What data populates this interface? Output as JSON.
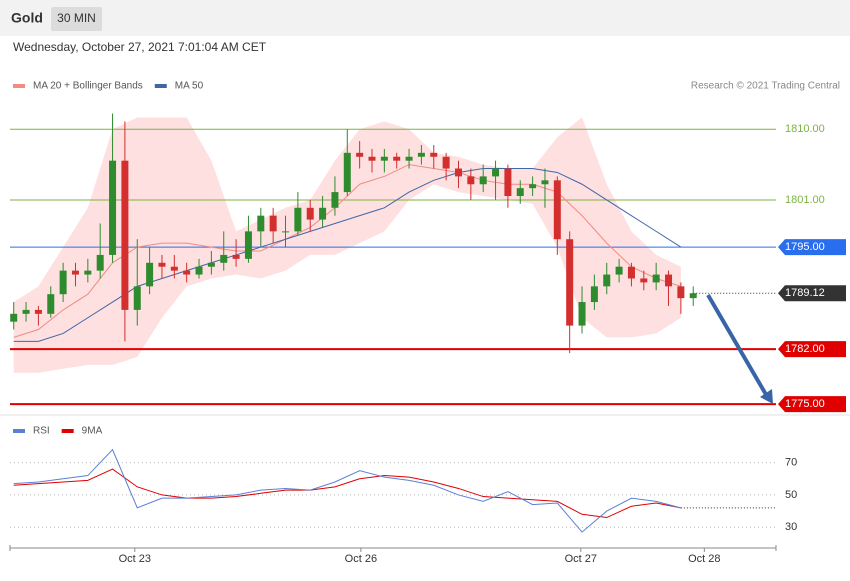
{
  "chart_data": [
    {
      "type": "candlestick",
      "title": "Gold",
      "timeframe": "30 MIN",
      "subtitle": "Wednesday, October 27, 2021 7:01:04 AM CET",
      "credit": "Research © 2021 Trading Central",
      "xlim": [
        -0.3,
        61.7
      ],
      "ylim": [
        1774,
        1815
      ],
      "up_color": "#2e8b2e",
      "down_color": "#d32f2f",
      "x": [
        0,
        1,
        2,
        3,
        4,
        5,
        6,
        7,
        8,
        9,
        10,
        11,
        12,
        13,
        14,
        15,
        16,
        17,
        18,
        19,
        20,
        21,
        22,
        23,
        24,
        25,
        26,
        27,
        28,
        29,
        30,
        31,
        32,
        33,
        34,
        35,
        36,
        37,
        38,
        39,
        40,
        41,
        42,
        43,
        44,
        45,
        46,
        47,
        48,
        49,
        50,
        51,
        52,
        53,
        54,
        55
      ],
      "open": [
        1785.5,
        1786.5,
        1787,
        1786.5,
        1789,
        1792,
        1791.5,
        1792,
        1794,
        1806,
        1787,
        1790,
        1793,
        1792.5,
        1792,
        1791.5,
        1792.5,
        1793,
        1794,
        1793.5,
        1797,
        1799,
        1797,
        1797,
        1800,
        1798.5,
        1800,
        1802,
        1807,
        1806.5,
        1806,
        1806.5,
        1806,
        1806.5,
        1807,
        1806.5,
        1805,
        1804,
        1803,
        1804,
        1805,
        1801.5,
        1802.5,
        1803,
        1803.5,
        1796,
        1785,
        1788,
        1790,
        1791.5,
        1792.5,
        1791,
        1790.5,
        1791.5,
        1790,
        1788.5
      ],
      "high": [
        1788,
        1788,
        1787.5,
        1790,
        1793,
        1793,
        1793.5,
        1798,
        1812,
        1811,
        1796,
        1795,
        1794,
        1794,
        1793,
        1793.5,
        1794.5,
        1797,
        1796,
        1799,
        1800,
        1800,
        1799,
        1802,
        1801,
        1801.5,
        1804,
        1810,
        1808.5,
        1807.5,
        1807.5,
        1807,
        1807.5,
        1808,
        1808,
        1807,
        1806,
        1805,
        1805.5,
        1806,
        1805.5,
        1803.5,
        1804,
        1805,
        1804,
        1797,
        1790,
        1791.5,
        1793,
        1793.5,
        1793,
        1792,
        1793,
        1792,
        1790.5,
        1790
      ],
      "low": [
        1784.5,
        1785.5,
        1785,
        1786,
        1788,
        1790,
        1790.5,
        1791,
        1793,
        1783,
        1785,
        1789,
        1791,
        1791,
        1790.5,
        1791,
        1791.5,
        1792,
        1792.5,
        1793,
        1795,
        1795.5,
        1795,
        1796.5,
        1797,
        1797.5,
        1799,
        1801.5,
        1805,
        1804.5,
        1804.5,
        1805,
        1805,
        1805.5,
        1805,
        1803.5,
        1802.5,
        1801,
        1802,
        1801,
        1800,
        1800.5,
        1801.5,
        1800,
        1794,
        1781.5,
        1784,
        1787,
        1789,
        1790.5,
        1790,
        1789.5,
        1789.5,
        1787.5,
        1786.5,
        1787.5
      ],
      "close": [
        1786.5,
        1787,
        1786.5,
        1789,
        1792,
        1791.5,
        1792,
        1794,
        1806,
        1787,
        1790,
        1793,
        1792.5,
        1792,
        1791.5,
        1792.5,
        1793,
        1794,
        1793.5,
        1797,
        1799,
        1797,
        1797,
        1800,
        1798.5,
        1800,
        1802,
        1807,
        1806.5,
        1806,
        1806.5,
        1806,
        1806.5,
        1807,
        1806.5,
        1805,
        1804,
        1803,
        1804,
        1805,
        1801.5,
        1802.5,
        1803,
        1803.5,
        1796,
        1785,
        1788,
        1790,
        1791.5,
        1792.5,
        1791,
        1790.5,
        1791.5,
        1790,
        1788.5,
        1789.12
      ],
      "indicators": {
        "x": [
          0,
          2,
          4,
          6,
          8,
          10,
          12,
          14,
          16,
          18,
          20,
          22,
          24,
          26,
          28,
          30,
          32,
          34,
          36,
          38,
          40,
          42,
          44,
          46,
          48,
          50,
          52,
          54
        ],
        "series": [
          {
            "name": "MA 20 + Bollinger Bands",
            "color": "#f28b82",
            "band_color": "#fde0df",
            "values": [
              1783.5,
              1784.5,
              1787,
              1789,
              1793,
              1795,
              1795.5,
              1795.5,
              1795,
              1794.5,
              1794.5,
              1796,
              1797.5,
              1800,
              1803,
              1804,
              1805.5,
              1805,
              1804.5,
              1803.5,
              1803,
              1803,
              1802,
              1799,
              1795.5,
              1792.5,
              1791,
              1790
            ],
            "upper": [
              1788,
              1790,
              1795,
              1800,
              1810,
              1811.5,
              1811.5,
              1811.5,
              1806,
              1797,
              1798.5,
              1800,
              1801,
              1806,
              1810,
              1811,
              1810,
              1807,
              1806.5,
              1805.5,
              1805,
              1805,
              1809,
              1811.5,
              1803,
              1797,
              1794,
              1792.5
            ],
            "lower": [
              1779,
              1779,
              1779.5,
              1780,
              1780,
              1781,
              1786,
              1790,
              1791,
              1791.5,
              1791,
              1792,
              1794,
              1794,
              1795.5,
              1797,
              1801,
              1803,
              1802,
              1801.5,
              1801,
              1800.5,
              1795,
              1786,
              1783.5,
              1783.5,
              1784,
              1786
            ]
          },
          {
            "name": "MA 50",
            "color": "#3f67a8",
            "values": [
              1783,
              1783,
              1784,
              1786,
              1788,
              1790,
              1791,
              1792,
              1793,
              1794,
              1795,
              1796,
              1797,
              1798,
              1799,
              1800,
              1802,
              1803.5,
              1804.5,
              1805,
              1805,
              1805,
              1804.5,
              1803,
              1801,
              1799,
              1797,
              1795
            ]
          }
        ]
      },
      "levels": [
        {
          "value": 1810,
          "label": "1810.00",
          "color": "#7cb342",
          "tag": false,
          "dotted": false,
          "width": 1
        },
        {
          "value": 1801,
          "label": "1801.00",
          "color": "#7cb342",
          "tag": false,
          "dotted": false,
          "width": 1
        },
        {
          "value": 1795,
          "label": "1795.00",
          "color": "#2a6ef0",
          "tag": true,
          "dotted": false,
          "width": 1
        },
        {
          "value": 1789.12,
          "label": "1789.12",
          "color": "#333333",
          "tag": true,
          "dotted": true,
          "width": 1
        },
        {
          "value": 1782,
          "label": "1782.00",
          "color": "#e00000",
          "tag": true,
          "dotted": false,
          "width": 2
        },
        {
          "value": 1775,
          "label": "1775.00",
          "color": "#e00000",
          "tag": true,
          "dotted": false,
          "width": 2
        }
      ]
    },
    {
      "type": "line",
      "xlim": [
        -0.3,
        61.7
      ],
      "ylim": [
        19,
        84
      ],
      "yticks": [
        30,
        50,
        70
      ],
      "xticks": [
        {
          "value": 9.8,
          "label": "Oct 23"
        },
        {
          "value": 28.1,
          "label": "Oct 26"
        },
        {
          "value": 45.9,
          "label": "Oct 27"
        },
        {
          "value": 55.9,
          "label": "Oct 28"
        }
      ],
      "x": [
        0,
        2,
        4,
        6,
        8,
        10,
        12,
        14,
        16,
        18,
        20,
        22,
        24,
        26,
        28,
        30,
        32,
        34,
        36,
        38,
        40,
        42,
        44,
        46,
        48,
        50,
        52,
        54
      ],
      "series": [
        {
          "name": "RSI",
          "color": "#5b7fd6",
          "values": [
            57,
            58,
            60,
            62,
            78,
            42,
            48,
            48,
            49,
            50,
            53,
            54,
            53,
            58,
            65,
            61,
            59,
            56,
            50,
            46,
            52,
            44,
            45,
            27,
            40,
            48,
            46,
            42
          ]
        },
        {
          "name": "9MA",
          "color": "#e00000",
          "values": [
            56,
            57,
            58,
            59,
            66,
            55,
            50,
            48,
            48,
            49,
            51,
            53,
            53,
            55,
            60,
            62,
            61,
            58,
            54,
            49,
            48,
            47,
            46,
            38,
            36,
            43,
            45,
            42
          ]
        }
      ]
    }
  ]
}
